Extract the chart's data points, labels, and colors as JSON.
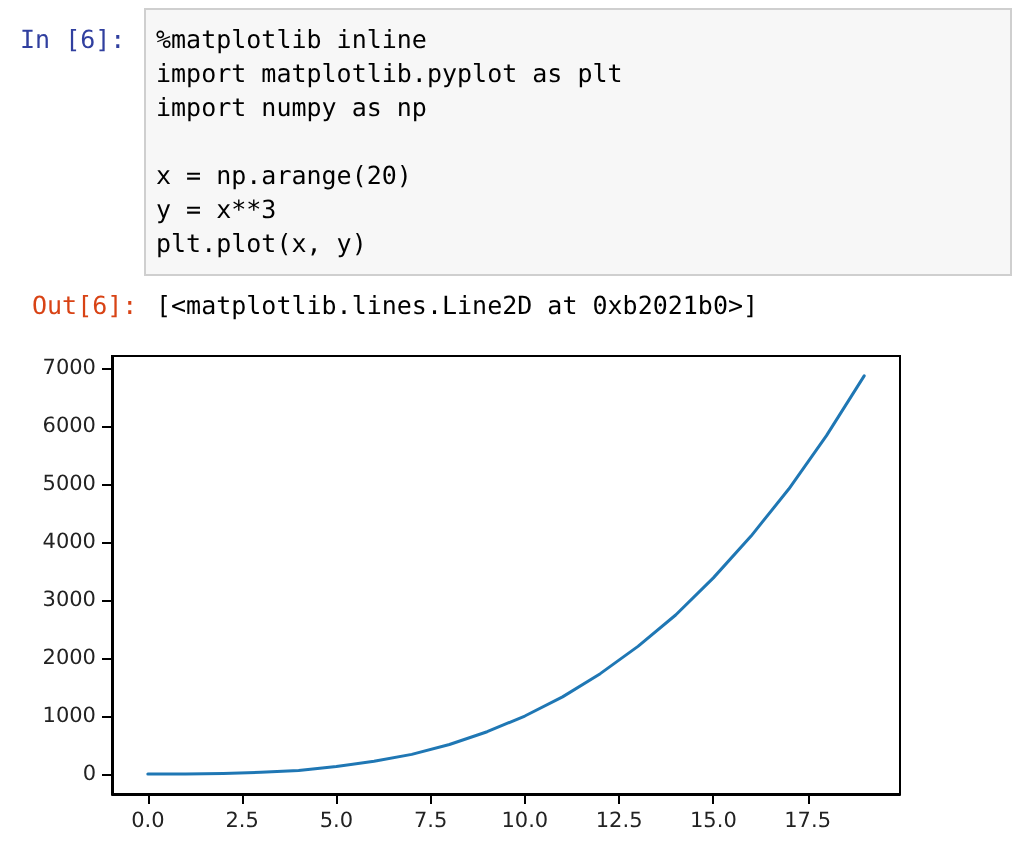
{
  "chart_data": {
    "type": "line",
    "annotations": [
      "In [6]:",
      "%matplotlib inline",
      "import matplotlib.pyplot as plt",
      "import numpy as np",
      "x = np.arange(20)",
      "y = x**3",
      "plt.plot(x, y)",
      "Out[6]:",
      "[<matplotlib.lines.Line2D at 0xb2021b0>]"
    ],
    "x": [
      0,
      1,
      2,
      3,
      4,
      5,
      6,
      7,
      8,
      9,
      10,
      11,
      12,
      13,
      14,
      15,
      16,
      17,
      18,
      19
    ],
    "series": [
      {
        "color": "#1f77b4",
        "values": [
          0,
          0,
          10,
          30,
          60,
          130,
          220,
          340,
          510,
          730,
          1000,
          1330,
          1730,
          2200,
          2740,
          3380,
          4100,
          4910,
          5830,
          6860
        ]
      }
    ],
    "xlim": [
      -0.95,
      19.95
    ],
    "xticks": [
      {
        "value": 0,
        "label": "0.0"
      },
      {
        "value": 2.5,
        "label": "2.5"
      },
      {
        "value": 5,
        "label": "5.0"
      },
      {
        "value": 7.5,
        "label": "7.5"
      },
      {
        "value": 10,
        "label": "10.0"
      },
      {
        "value": 12.5,
        "label": "12.5"
      },
      {
        "value": 15,
        "label": "15.0"
      },
      {
        "value": 17.5,
        "label": "17.5"
      }
    ],
    "ylim": [
      -343,
      7202
    ],
    "yticks": [
      0,
      1000,
      2000,
      3000,
      4000,
      5000,
      6000,
      7000
    ],
    "grid": false,
    "marker": "none",
    "line_style": "solid"
  }
}
